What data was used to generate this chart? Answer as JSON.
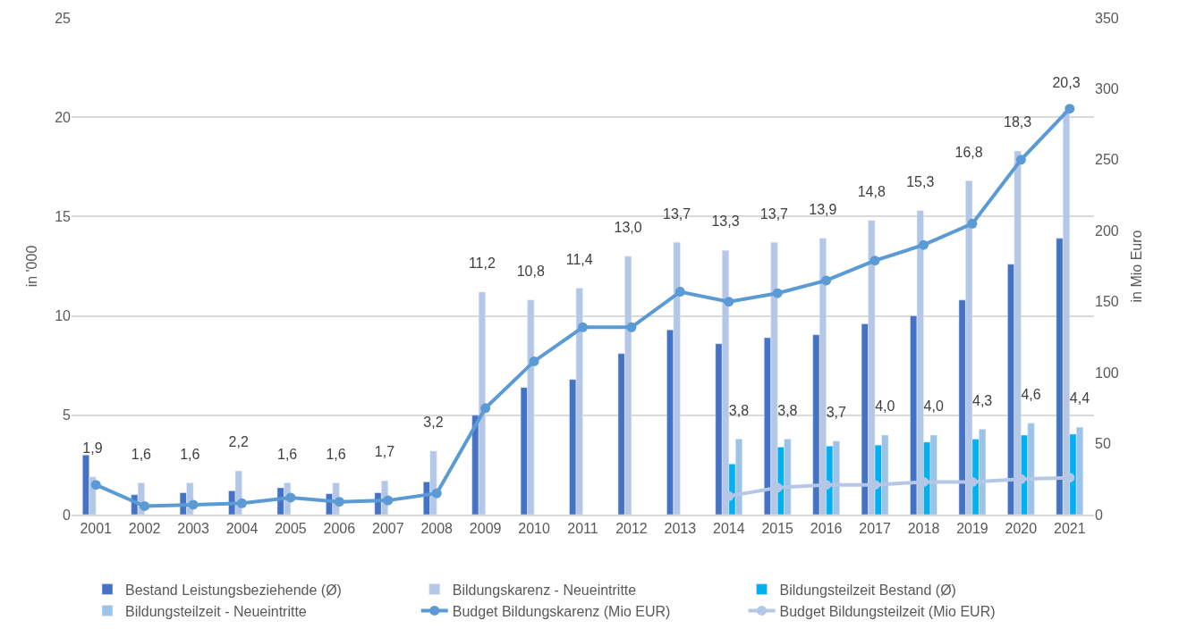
{
  "chart_data": {
    "type": "bar",
    "ylabel": "in '000",
    "y2label": "in Mio Euro",
    "categories": [
      "2001",
      "2002",
      "2003",
      "2004",
      "2005",
      "2006",
      "2007",
      "2008",
      "2009",
      "2010",
      "2011",
      "2012",
      "2013",
      "2014",
      "2015",
      "2016",
      "2017",
      "2018",
      "2019",
      "2020",
      "2021"
    ],
    "series": [
      {
        "name": "Bestand Leistungsbeziehende (Ø)",
        "color": "#4472c4",
        "values": [
          3.0,
          1.0,
          1.1,
          1.2,
          1.35,
          1.05,
          1.1,
          1.65,
          5.0,
          6.4,
          6.8,
          8.1,
          9.3,
          8.6,
          8.9,
          9.05,
          9.6,
          10.0,
          10.8,
          12.6,
          13.9
        ]
      },
      {
        "name": "Bildungskarenz - Neueintritte",
        "color": "#b4c7e7",
        "values": [
          1.9,
          1.6,
          1.6,
          2.2,
          1.6,
          1.6,
          1.7,
          3.2,
          11.2,
          10.8,
          11.4,
          13.0,
          13.7,
          13.3,
          13.7,
          13.9,
          14.8,
          15.3,
          16.8,
          18.3,
          20.3
        ],
        "value_labels": [
          "1,9",
          "1,6",
          "1,6",
          "2,2",
          "1,6",
          "1,6",
          "1,7",
          "3,2",
          "11,2",
          "10,8",
          "11,4",
          "13,0",
          "13,7",
          "13,3",
          "13,7",
          "13,9",
          "14,8",
          "15,3",
          "16,8",
          "18,3",
          "20,3"
        ]
      },
      {
        "name": "Bildungsteilzeit Bestand (Ø)",
        "color": "#00b0f0",
        "values": [
          null,
          null,
          null,
          null,
          null,
          null,
          null,
          null,
          null,
          null,
          null,
          null,
          null,
          2.55,
          3.4,
          3.45,
          3.5,
          3.65,
          3.8,
          4.0,
          4.05
        ]
      },
      {
        "name": "Bildungsteilzeit - Neueintritte",
        "color": "#9dc3e6",
        "values": [
          null,
          null,
          null,
          null,
          null,
          null,
          null,
          null,
          null,
          null,
          null,
          null,
          null,
          3.8,
          3.8,
          3.7,
          4.0,
          4.0,
          4.3,
          4.6,
          4.4
        ],
        "value_labels": [
          null,
          null,
          null,
          null,
          null,
          null,
          null,
          null,
          null,
          null,
          null,
          null,
          null,
          "3,8",
          "3,8",
          "3,7",
          "4,0",
          "4,0",
          "4,3",
          "4,6",
          "4,4"
        ]
      },
      {
        "name": "Budget Bildungskarenz (Mio EUR)",
        "type": "line",
        "axis": "y2",
        "color": "#5b9bd5",
        "marker": "circle",
        "values": [
          21,
          6,
          7,
          8,
          12,
          9,
          10,
          15,
          75,
          108,
          132,
          132,
          157,
          150,
          156,
          165,
          179,
          190,
          205,
          250,
          286
        ]
      },
      {
        "name": "Budget Bildungsteilzeit (Mio EUR)",
        "type": "line",
        "axis": "y2",
        "color": "#b4c7e7",
        "marker": "circle",
        "values": [
          null,
          null,
          null,
          null,
          null,
          null,
          null,
          null,
          null,
          null,
          null,
          null,
          null,
          13,
          19,
          21,
          21,
          23,
          23,
          25,
          26
        ]
      }
    ],
    "ylim": [
      0,
      25
    ],
    "yticks": [
      0,
      5,
      10,
      15,
      20,
      25
    ],
    "y2lim": [
      0,
      350
    ],
    "y2ticks": [
      0,
      50,
      100,
      150,
      200,
      250,
      300,
      350
    ],
    "grid": "y",
    "legend": "bottom"
  }
}
